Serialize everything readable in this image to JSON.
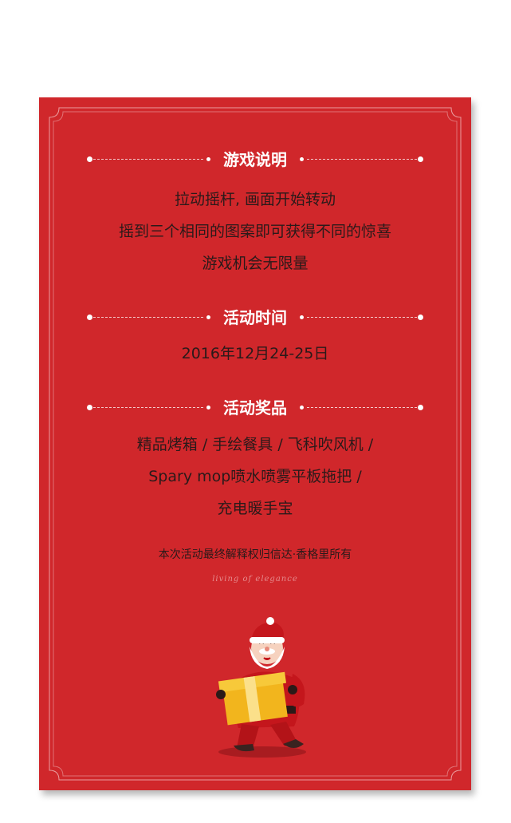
{
  "sections": [
    {
      "title": "游戏说明",
      "lines": [
        "拉动摇杆, 画面开始转动",
        "摇到三个相同的图案即可获得不同的惊喜",
        "游戏机会无限量"
      ]
    },
    {
      "title": "活动时间",
      "lines": [
        "2016年12月24-25日"
      ]
    },
    {
      "title": "活动奖品",
      "lines": [
        "精品烤箱 / 手绘餐具 / 飞科吹风机 /",
        "Spary mop喷水喷雾平板拖把 /",
        "充电暖手宝"
      ]
    }
  ],
  "footer": "本次活动最终解释权归信达·香格里所有",
  "tagline": "living of elegance",
  "colors": {
    "background": "#d0272b",
    "accent": "#ffffff",
    "text": "#2a1a1a"
  }
}
